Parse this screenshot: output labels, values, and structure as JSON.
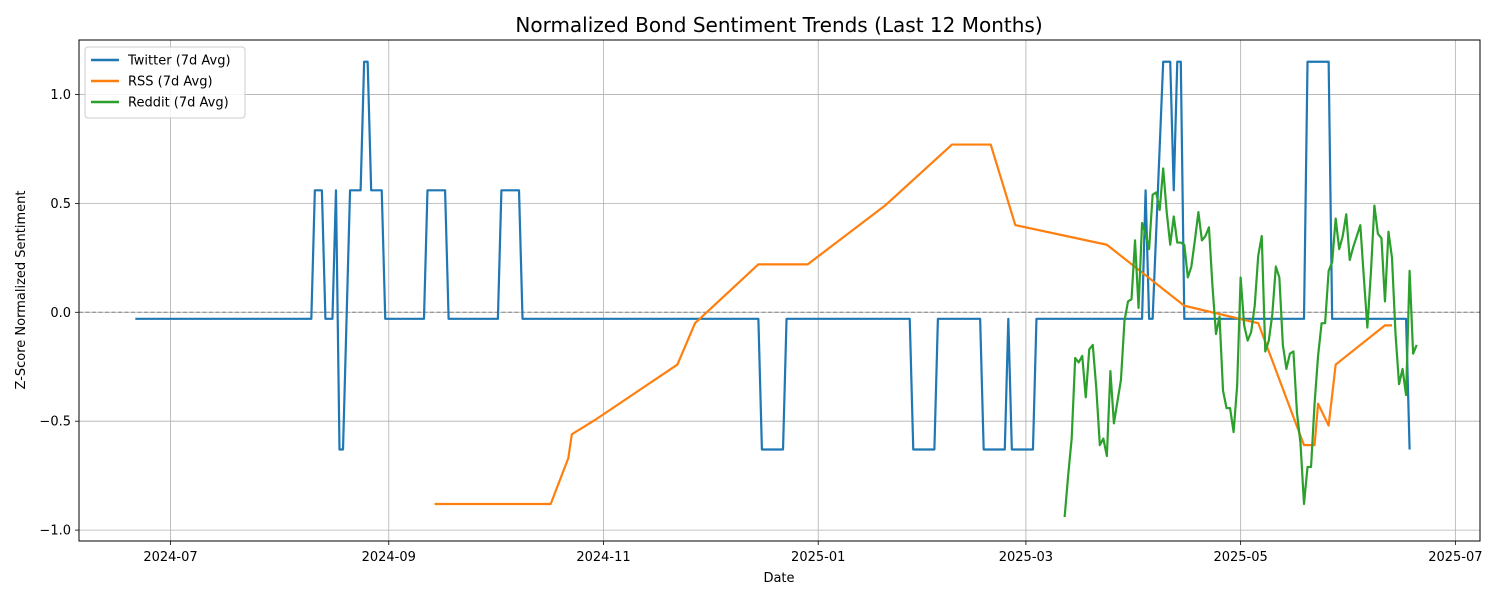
{
  "chart_data": {
    "type": "line",
    "title": "Normalized Bond Sentiment Trends (Last 12 Months)",
    "xlabel": "Date",
    "ylabel": "Z-Score Normalized Sentiment",
    "x_axis": "date",
    "xlim": [
      "2024-06-05",
      "2025-07-08"
    ],
    "ylim": [
      -1.05,
      1.25
    ],
    "x_ticks": [
      "2024-07-01",
      "2024-09-01",
      "2024-11-01",
      "2025-01-01",
      "2025-03-01",
      "2025-05-01",
      "2025-07-01"
    ],
    "x_tick_labels": [
      "2024-07",
      "2024-09",
      "2024-11",
      "2025-01",
      "2025-03",
      "2025-05",
      "2025-07"
    ],
    "y_ticks": [
      -1.0,
      -0.5,
      0.0,
      0.5,
      1.0
    ],
    "y_tick_labels": [
      "−1.0",
      "−0.5",
      "0.0",
      "0.5",
      "1.0"
    ],
    "grid": true,
    "reference_line": {
      "y": 0.0,
      "style": "dashed",
      "color": "#808080"
    },
    "legend": {
      "position": "top-left"
    },
    "series": [
      {
        "name": "Twitter (7d Avg)",
        "color": "#1f77b4",
        "points": [
          [
            "2024-06-21",
            -0.03
          ],
          [
            "2024-08-10",
            -0.03
          ],
          [
            "2024-08-11",
            0.56
          ],
          [
            "2024-08-13",
            0.56
          ],
          [
            "2024-08-14",
            -0.03
          ],
          [
            "2024-08-16",
            -0.03
          ],
          [
            "2024-08-17",
            0.56
          ],
          [
            "2024-08-18",
            -0.63
          ],
          [
            "2024-08-19",
            -0.63
          ],
          [
            "2024-08-21",
            0.56
          ],
          [
            "2024-08-24",
            0.56
          ],
          [
            "2024-08-25",
            1.15
          ],
          [
            "2024-08-26",
            1.15
          ],
          [
            "2024-08-27",
            0.56
          ],
          [
            "2024-08-30",
            0.56
          ],
          [
            "2024-08-31",
            -0.03
          ],
          [
            "2024-09-11",
            -0.03
          ],
          [
            "2024-09-12",
            0.56
          ],
          [
            "2024-09-17",
            0.56
          ],
          [
            "2024-09-18",
            -0.03
          ],
          [
            "2024-10-02",
            -0.03
          ],
          [
            "2024-10-03",
            0.56
          ],
          [
            "2024-10-08",
            0.56
          ],
          [
            "2024-10-09",
            -0.03
          ],
          [
            "2024-12-15",
            -0.03
          ],
          [
            "2024-12-16",
            -0.63
          ],
          [
            "2024-12-22",
            -0.63
          ],
          [
            "2024-12-23",
            -0.03
          ],
          [
            "2025-01-27",
            -0.03
          ],
          [
            "2025-01-28",
            -0.63
          ],
          [
            "2025-02-03",
            -0.63
          ],
          [
            "2025-02-04",
            -0.03
          ],
          [
            "2025-02-16",
            -0.03
          ],
          [
            "2025-02-17",
            -0.63
          ],
          [
            "2025-02-23",
            -0.63
          ],
          [
            "2025-02-24",
            -0.03
          ],
          [
            "2025-02-25",
            -0.63
          ],
          [
            "2025-03-03",
            -0.63
          ],
          [
            "2025-03-04",
            -0.03
          ],
          [
            "2025-04-03",
            -0.03
          ],
          [
            "2025-04-04",
            0.56
          ],
          [
            "2025-04-05",
            -0.03
          ],
          [
            "2025-04-06",
            -0.03
          ],
          [
            "2025-04-09",
            1.15
          ],
          [
            "2025-04-11",
            1.15
          ],
          [
            "2025-04-12",
            0.56
          ],
          [
            "2025-04-13",
            1.15
          ],
          [
            "2025-04-14",
            1.15
          ],
          [
            "2025-04-15",
            -0.03
          ],
          [
            "2025-05-19",
            -0.03
          ],
          [
            "2025-05-20",
            1.15
          ],
          [
            "2025-05-26",
            1.15
          ],
          [
            "2025-05-27",
            -0.03
          ],
          [
            "2025-06-17",
            -0.03
          ],
          [
            "2025-06-18",
            -0.63
          ]
        ]
      },
      {
        "name": "RSS (7d Avg)",
        "color": "#ff7f0e",
        "points": [
          [
            "2024-09-14",
            -0.88
          ],
          [
            "2024-10-17",
            -0.88
          ],
          [
            "2024-10-22",
            -0.67
          ],
          [
            "2024-10-23",
            -0.56
          ],
          [
            "2024-10-30",
            -0.49
          ],
          [
            "2024-11-22",
            -0.24
          ],
          [
            "2024-11-27",
            -0.05
          ],
          [
            "2024-12-15",
            0.22
          ],
          [
            "2024-12-29",
            0.22
          ],
          [
            "2025-01-20",
            0.49
          ],
          [
            "2025-02-08",
            0.77
          ],
          [
            "2025-02-19",
            0.77
          ],
          [
            "2025-02-26",
            0.4
          ],
          [
            "2025-03-24",
            0.31
          ],
          [
            "2025-04-15",
            0.03
          ],
          [
            "2025-05-06",
            -0.05
          ],
          [
            "2025-05-19",
            -0.61
          ],
          [
            "2025-05-22",
            -0.61
          ],
          [
            "2025-05-23",
            -0.42
          ],
          [
            "2025-05-26",
            -0.52
          ],
          [
            "2025-05-28",
            -0.24
          ],
          [
            "2025-06-11",
            -0.06
          ],
          [
            "2025-06-13",
            -0.06
          ]
        ]
      },
      {
        "name": "Reddit (7d Avg)",
        "color": "#2ca02c",
        "points": [
          [
            "2025-03-12",
            -0.94
          ],
          [
            "2025-03-13",
            -0.75
          ],
          [
            "2025-03-14",
            -0.58
          ],
          [
            "2025-03-15",
            -0.21
          ],
          [
            "2025-03-16",
            -0.23
          ],
          [
            "2025-03-17",
            -0.2
          ],
          [
            "2025-03-18",
            -0.39
          ],
          [
            "2025-03-19",
            -0.17
          ],
          [
            "2025-03-20",
            -0.15
          ],
          [
            "2025-03-21",
            -0.35
          ],
          [
            "2025-03-22",
            -0.61
          ],
          [
            "2025-03-23",
            -0.58
          ],
          [
            "2025-03-24",
            -0.66
          ],
          [
            "2025-03-25",
            -0.27
          ],
          [
            "2025-03-26",
            -0.51
          ],
          [
            "2025-03-27",
            -0.41
          ],
          [
            "2025-03-28",
            -0.31
          ],
          [
            "2025-03-29",
            -0.04
          ],
          [
            "2025-03-30",
            0.05
          ],
          [
            "2025-03-31",
            0.06
          ],
          [
            "2025-04-01",
            0.33
          ],
          [
            "2025-04-02",
            0.02
          ],
          [
            "2025-04-03",
            0.41
          ],
          [
            "2025-04-04",
            0.36
          ],
          [
            "2025-04-05",
            0.29
          ],
          [
            "2025-04-06",
            0.54
          ],
          [
            "2025-04-07",
            0.55
          ],
          [
            "2025-04-08",
            0.47
          ],
          [
            "2025-04-09",
            0.66
          ],
          [
            "2025-04-10",
            0.46
          ],
          [
            "2025-04-11",
            0.31
          ],
          [
            "2025-04-12",
            0.44
          ],
          [
            "2025-04-13",
            0.32
          ],
          [
            "2025-04-14",
            0.32
          ],
          [
            "2025-04-15",
            0.31
          ],
          [
            "2025-04-16",
            0.16
          ],
          [
            "2025-04-17",
            0.21
          ],
          [
            "2025-04-18",
            0.33
          ],
          [
            "2025-04-19",
            0.46
          ],
          [
            "2025-04-20",
            0.33
          ],
          [
            "2025-04-21",
            0.35
          ],
          [
            "2025-04-22",
            0.39
          ],
          [
            "2025-04-23",
            0.12
          ],
          [
            "2025-04-24",
            -0.1
          ],
          [
            "2025-04-25",
            -0.02
          ],
          [
            "2025-04-26",
            -0.36
          ],
          [
            "2025-04-27",
            -0.44
          ],
          [
            "2025-04-28",
            -0.44
          ],
          [
            "2025-04-29",
            -0.55
          ],
          [
            "2025-04-30",
            -0.34
          ],
          [
            "2025-05-01",
            0.16
          ],
          [
            "2025-05-02",
            -0.06
          ],
          [
            "2025-05-03",
            -0.13
          ],
          [
            "2025-05-04",
            -0.09
          ],
          [
            "2025-05-05",
            0.03
          ],
          [
            "2025-05-06",
            0.26
          ],
          [
            "2025-05-07",
            0.35
          ],
          [
            "2025-05-08",
            -0.18
          ],
          [
            "2025-05-09",
            -0.13
          ],
          [
            "2025-05-10",
            -0.01
          ],
          [
            "2025-05-11",
            0.21
          ],
          [
            "2025-05-12",
            0.16
          ],
          [
            "2025-05-13",
            -0.15
          ],
          [
            "2025-05-14",
            -0.26
          ],
          [
            "2025-05-15",
            -0.19
          ],
          [
            "2025-05-16",
            -0.18
          ],
          [
            "2025-05-17",
            -0.46
          ],
          [
            "2025-05-18",
            -0.6
          ],
          [
            "2025-05-19",
            -0.88
          ],
          [
            "2025-05-20",
            -0.71
          ],
          [
            "2025-05-21",
            -0.71
          ],
          [
            "2025-05-22",
            -0.42
          ],
          [
            "2025-05-23",
            -0.2
          ],
          [
            "2025-05-24",
            -0.05
          ],
          [
            "2025-05-25",
            -0.05
          ],
          [
            "2025-05-26",
            0.19
          ],
          [
            "2025-05-27",
            0.23
          ],
          [
            "2025-05-28",
            0.43
          ],
          [
            "2025-05-29",
            0.29
          ],
          [
            "2025-05-30",
            0.35
          ],
          [
            "2025-05-31",
            0.45
          ],
          [
            "2025-06-01",
            0.24
          ],
          [
            "2025-06-02",
            0.3
          ],
          [
            "2025-06-03",
            0.35
          ],
          [
            "2025-06-04",
            0.4
          ],
          [
            "2025-06-05",
            0.16
          ],
          [
            "2025-06-06",
            -0.07
          ],
          [
            "2025-06-07",
            0.18
          ],
          [
            "2025-06-08",
            0.49
          ],
          [
            "2025-06-09",
            0.36
          ],
          [
            "2025-06-10",
            0.34
          ],
          [
            "2025-06-11",
            0.05
          ],
          [
            "2025-06-12",
            0.37
          ],
          [
            "2025-06-13",
            0.25
          ],
          [
            "2025-06-14",
            -0.1
          ],
          [
            "2025-06-15",
            -0.33
          ],
          [
            "2025-06-16",
            -0.26
          ],
          [
            "2025-06-17",
            -0.38
          ],
          [
            "2025-06-18",
            0.19
          ],
          [
            "2025-06-19",
            -0.19
          ],
          [
            "2025-06-20",
            -0.15
          ]
        ]
      }
    ]
  }
}
